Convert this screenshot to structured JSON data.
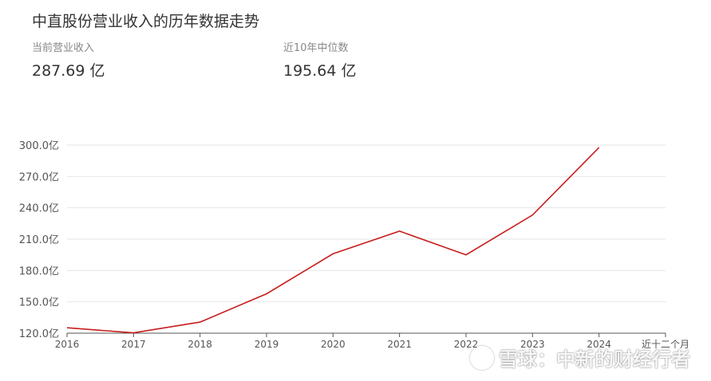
{
  "header": {
    "title": "中直股份营业收入的历年数据走势"
  },
  "stats": [
    {
      "label": "当前营业收入",
      "value": "287.69 亿"
    },
    {
      "label": "近10年中位数",
      "value": "195.64 亿"
    }
  ],
  "watermark": {
    "text": "雪球：中新的财经行者",
    "logo_icon": "snowball-logo-icon"
  },
  "chart_data": {
    "type": "line",
    "title": "中直股份营业收入的历年数据走势",
    "xlabel": "",
    "ylabel": "",
    "categories": [
      "2016",
      "2017",
      "2018",
      "2019",
      "2020",
      "2021",
      "2022",
      "2023",
      "2024",
      "近十二个月"
    ],
    "ylim": [
      120,
      300
    ],
    "yticks": [
      120,
      150,
      180,
      210,
      240,
      270,
      300
    ],
    "ytick_labels": [
      "120.0亿",
      "150.0亿",
      "180.0亿",
      "210.0亿",
      "240.0亿",
      "270.0亿",
      "300.0亿"
    ],
    "grid": true,
    "series": [
      {
        "values": [
          125.2,
          120.3,
          130.6,
          157.7,
          196.0,
          217.6,
          195.0,
          233.0,
          297.6,
          null
        ],
        "color": "#c81e1e"
      }
    ]
  }
}
